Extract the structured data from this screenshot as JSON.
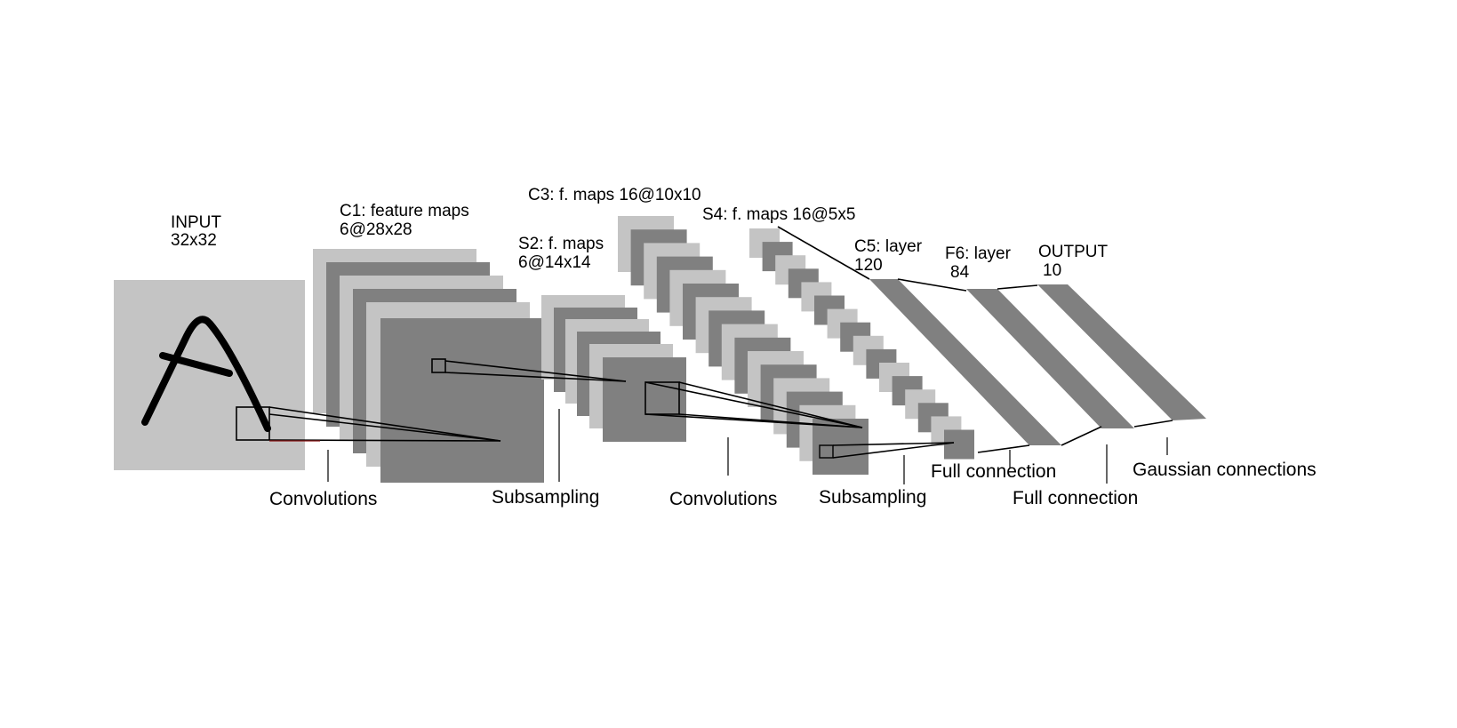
{
  "colors": {
    "background": "#ffffff",
    "light_map": "#c4c4c4",
    "dark_map": "#808080",
    "stroke": "#000000",
    "accent_line": "#8b1a1a"
  },
  "layers": {
    "input": {
      "name": "INPUT",
      "size": "32x32"
    },
    "c1": {
      "name": "C1: feature maps",
      "size": "6@28x28"
    },
    "s2": {
      "name": "S2: f. maps",
      "size": "6@14x14"
    },
    "c3": {
      "name": "C3: f. maps 16@10x10"
    },
    "s4": {
      "name": "S4: f. maps 16@5x5"
    },
    "c5": {
      "name": "C5: layer",
      "size": "120"
    },
    "f6": {
      "name": "F6: layer",
      "size": "84"
    },
    "output": {
      "name": "OUTPUT",
      "size": "10"
    }
  },
  "operations": {
    "op1": "Convolutions",
    "op2": "Subsampling",
    "op3": "Convolutions",
    "op4": "Subsampling",
    "op5": "Full connection",
    "op6": "Full connection",
    "op7": "Gaussian connections"
  }
}
